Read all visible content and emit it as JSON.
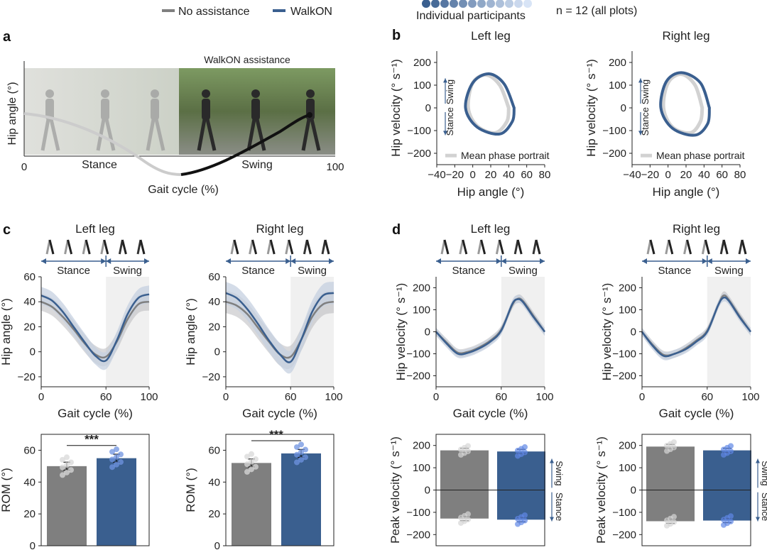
{
  "legend": {
    "no_assistance": "No assistance",
    "walkon": "WalkON",
    "participants": "Individual participants",
    "n_note": "n = 12 (all plots)"
  },
  "colors": {
    "noassist": "#7f7f7f",
    "walkon": "#3a5f8f",
    "light": "#c9cbd0",
    "shade": "#f0f0f0",
    "band": "#c5d0e0"
  },
  "panels": {
    "a": "a",
    "b": "b",
    "c": "c",
    "d": "d"
  },
  "panel_a": {
    "banner": "WalkON assistance",
    "ylabel": "Hip angle (°)",
    "xlabel": "Gait cycle (%)",
    "tick_start": "0",
    "tick_end": "100",
    "phase_stance": "Stance",
    "phase_swing": "Swing"
  },
  "phase_labels": {
    "stance": "Stance",
    "swing": "Swing"
  },
  "mean_phase_label": "Mean phase portrait",
  "chart_data": [
    {
      "id": "b_left",
      "type": "line",
      "title": "Left leg",
      "xlabel": "Hip angle (°)",
      "ylabel": "Hip velocity (° s⁻¹)",
      "xlim": [
        -40,
        80
      ],
      "ylim": [
        -250,
        250
      ],
      "xticks": [
        "−40",
        "−20",
        "0",
        "20",
        "40",
        "60",
        "80"
      ],
      "yticks": [
        "200",
        "100",
        "0",
        "−100",
        "−200"
      ],
      "series": [
        {
          "name": "No assistance",
          "x": [
            40,
            30,
            15,
            0,
            -5,
            5,
            25,
            38,
            40
          ],
          "y": [
            0,
            100,
            145,
            110,
            0,
            -80,
            -110,
            -60,
            0
          ]
        },
        {
          "name": "WalkON",
          "x": [
            46,
            35,
            18,
            0,
            -8,
            5,
            30,
            44,
            46
          ],
          "y": [
            0,
            105,
            150,
            110,
            0,
            -85,
            -115,
            -60,
            0
          ]
        }
      ]
    },
    {
      "id": "b_right",
      "type": "line",
      "title": "Right leg",
      "xlabel": "Hip angle (°)",
      "ylabel": "Hip velocity (° s⁻¹)",
      "xlim": [
        -40,
        80
      ],
      "ylim": [
        -250,
        250
      ],
      "xticks": [
        "−40",
        "−20",
        "0",
        "20",
        "40",
        "60",
        "80"
      ],
      "yticks": [
        "200",
        "100",
        "0",
        "−100",
        "−200"
      ],
      "series": [
        {
          "name": "No assistance",
          "x": [
            38,
            30,
            15,
            0,
            -5,
            5,
            25,
            36,
            38
          ],
          "y": [
            0,
            100,
            148,
            110,
            0,
            -85,
            -110,
            -60,
            0
          ]
        },
        {
          "name": "WalkON",
          "x": [
            46,
            36,
            15,
            -2,
            -8,
            5,
            30,
            44,
            46
          ],
          "y": [
            0,
            110,
            155,
            115,
            0,
            -90,
            -120,
            -70,
            0
          ]
        }
      ]
    },
    {
      "id": "c_left_curve",
      "type": "line",
      "title": "Left leg",
      "xlabel": "Gait cycle (%)",
      "ylabel": "Hip angle (°)",
      "xlim": [
        0,
        100
      ],
      "ylim": [
        -28,
        60
      ],
      "xticks": [
        "0",
        "60",
        "100"
      ],
      "yticks": [
        "60",
        "40",
        "20",
        "0",
        "−20"
      ],
      "x": [
        0,
        10,
        20,
        30,
        40,
        50,
        60,
        70,
        80,
        90,
        100
      ],
      "series": [
        {
          "name": "No assistance",
          "values": [
            40,
            36,
            28,
            18,
            7,
            -2,
            -4,
            8,
            26,
            38,
            40
          ]
        },
        {
          "name": "WalkON",
          "values": [
            45,
            41,
            32,
            20,
            8,
            -3,
            -7,
            9,
            30,
            43,
            46
          ]
        }
      ]
    },
    {
      "id": "c_right_curve",
      "type": "line",
      "title": "Right leg",
      "xlabel": "Gait cycle (%)",
      "ylabel": "Hip angle (°)",
      "xlim": [
        0,
        100
      ],
      "ylim": [
        -28,
        60
      ],
      "xticks": [
        "0",
        "60",
        "100"
      ],
      "yticks": [
        "60",
        "40",
        "20",
        "0",
        "−20"
      ],
      "x": [
        0,
        10,
        20,
        30,
        40,
        50,
        60,
        70,
        80,
        90,
        100
      ],
      "series": [
        {
          "name": "No assistance",
          "values": [
            40,
            37,
            30,
            19,
            8,
            -2,
            -4,
            10,
            28,
            38,
            40
          ]
        },
        {
          "name": "WalkON",
          "values": [
            47,
            43,
            34,
            22,
            9,
            -2,
            -8,
            10,
            32,
            45,
            47
          ]
        }
      ]
    },
    {
      "id": "c_left_rom",
      "type": "bar",
      "ylabel": "ROM (°)",
      "ylim": [
        0,
        70
      ],
      "yticks": [
        "60",
        "40",
        "20",
        "0"
      ],
      "significance": "***",
      "categories": [
        "No assistance",
        "WalkON"
      ],
      "values": [
        50,
        55
      ]
    },
    {
      "id": "c_right_rom",
      "type": "bar",
      "ylabel": "ROM (°)",
      "ylim": [
        0,
        70
      ],
      "yticks": [
        "60",
        "40",
        "20",
        "0"
      ],
      "significance": "***",
      "categories": [
        "No assistance",
        "WalkON"
      ],
      "values": [
        52,
        58
      ]
    },
    {
      "id": "d_left_curve",
      "type": "line",
      "title": "Left leg",
      "xlabel": "Gait cycle (%)",
      "ylabel": "Hip velocity (° s⁻¹)",
      "xlim": [
        0,
        100
      ],
      "ylim": [
        -250,
        250
      ],
      "xticks": [
        "0",
        "60",
        "100"
      ],
      "yticks": [
        "200",
        "100",
        "0",
        "−100",
        "−200"
      ],
      "x": [
        0,
        10,
        20,
        30,
        40,
        50,
        60,
        70,
        75,
        80,
        90,
        100
      ],
      "series": [
        {
          "name": "No assistance",
          "values": [
            0,
            -50,
            -95,
            -90,
            -70,
            -40,
            10,
            120,
            150,
            140,
            70,
            0
          ]
        },
        {
          "name": "WalkON",
          "values": [
            0,
            -55,
            -100,
            -95,
            -75,
            -45,
            5,
            125,
            148,
            135,
            65,
            0
          ]
        }
      ]
    },
    {
      "id": "d_right_curve",
      "type": "line",
      "title": "Right leg",
      "xlabel": "Gait cycle (%)",
      "ylabel": "Hip velocity (° s⁻¹)",
      "xlim": [
        0,
        100
      ],
      "ylim": [
        -250,
        250
      ],
      "xticks": [
        "0",
        "60",
        "100"
      ],
      "yticks": [
        "200",
        "100",
        "0",
        "−100",
        "−200"
      ],
      "x": [
        0,
        10,
        20,
        30,
        40,
        50,
        60,
        70,
        75,
        80,
        90,
        100
      ],
      "series": [
        {
          "name": "No assistance",
          "values": [
            0,
            -60,
            -105,
            -100,
            -75,
            -40,
            5,
            120,
            165,
            145,
            70,
            0
          ]
        },
        {
          "name": "WalkON",
          "values": [
            0,
            -65,
            -110,
            -100,
            -80,
            -45,
            0,
            120,
            155,
            140,
            65,
            0
          ]
        }
      ]
    },
    {
      "id": "d_left_peak",
      "type": "bar",
      "ylabel": "Peak velocity (° s⁻¹)",
      "ylim": [
        -250,
        250
      ],
      "yticks": [
        "200",
        "100",
        "0",
        "−100",
        "−200"
      ],
      "categories": [
        "No assistance",
        "WalkON"
      ],
      "series": [
        {
          "name": "Swing",
          "values": [
            178,
            173
          ]
        },
        {
          "name": "Stance",
          "values": [
            -128,
            -133
          ]
        }
      ]
    },
    {
      "id": "d_right_peak",
      "type": "bar",
      "ylabel": "Peak velocity (° s⁻¹)",
      "ylim": [
        -250,
        250
      ],
      "yticks": [
        "200",
        "100",
        "0",
        "−100",
        "−200"
      ],
      "categories": [
        "No assistance",
        "WalkON"
      ],
      "series": [
        {
          "name": "Swing",
          "values": [
            195,
            178
          ]
        },
        {
          "name": "Stance",
          "values": [
            -140,
            -137
          ]
        }
      ]
    }
  ]
}
